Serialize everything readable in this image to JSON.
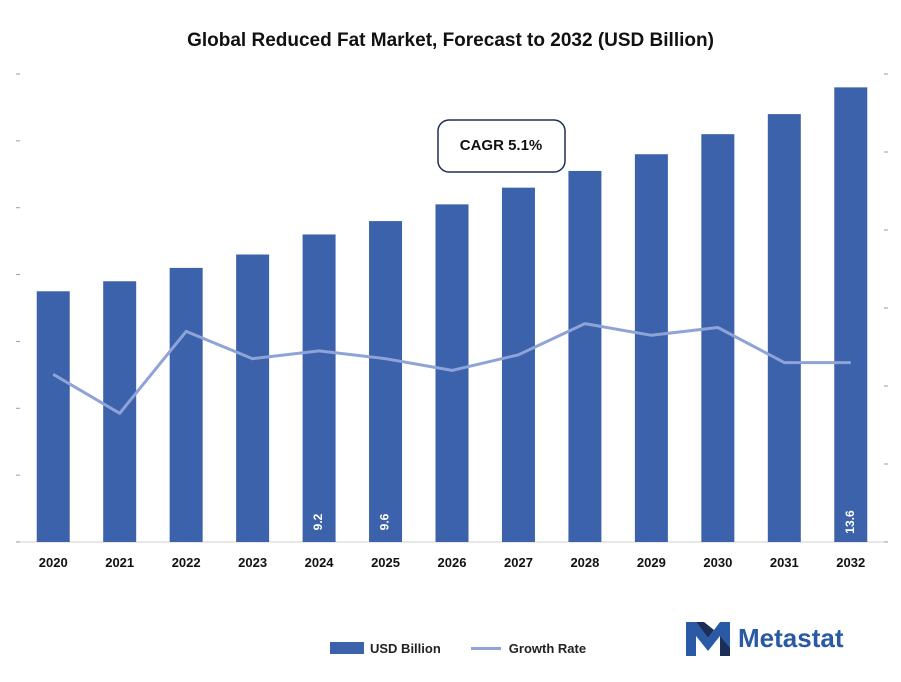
{
  "chart_data": {
    "type": "bar",
    "title": "Global Reduced Fat Market, Forecast to 2032 (USD Billion)",
    "categories": [
      "2020",
      "2021",
      "2022",
      "2023",
      "2024",
      "2025",
      "2026",
      "2027",
      "2028",
      "2029",
      "2030",
      "2031",
      "2032"
    ],
    "series": [
      {
        "name": "USD Billion",
        "type": "bar",
        "values": [
          7.5,
          7.8,
          8.2,
          8.6,
          9.2,
          9.6,
          10.1,
          10.6,
          11.1,
          11.6,
          12.2,
          12.8,
          13.6
        ]
      },
      {
        "name": "Growth Rate",
        "type": "line",
        "values": [
          4.3,
          3.3,
          5.4,
          4.7,
          4.9,
          4.7,
          4.4,
          4.8,
          5.6,
          5.3,
          5.5,
          4.6,
          4.6
        ]
      }
    ],
    "data_labels": {
      "4": "9.2",
      "5": "9.6",
      "12": "13.6"
    },
    "ylim": [
      0,
      14
    ],
    "y2lim": [
      0,
      12
    ],
    "annotation": "CAGR 5.1%",
    "legend_position": "bottom",
    "grid": false,
    "colors": {
      "bar": "#3b62aa",
      "line": "#8ea3d8"
    }
  },
  "brand": {
    "name": "Metastat"
  }
}
